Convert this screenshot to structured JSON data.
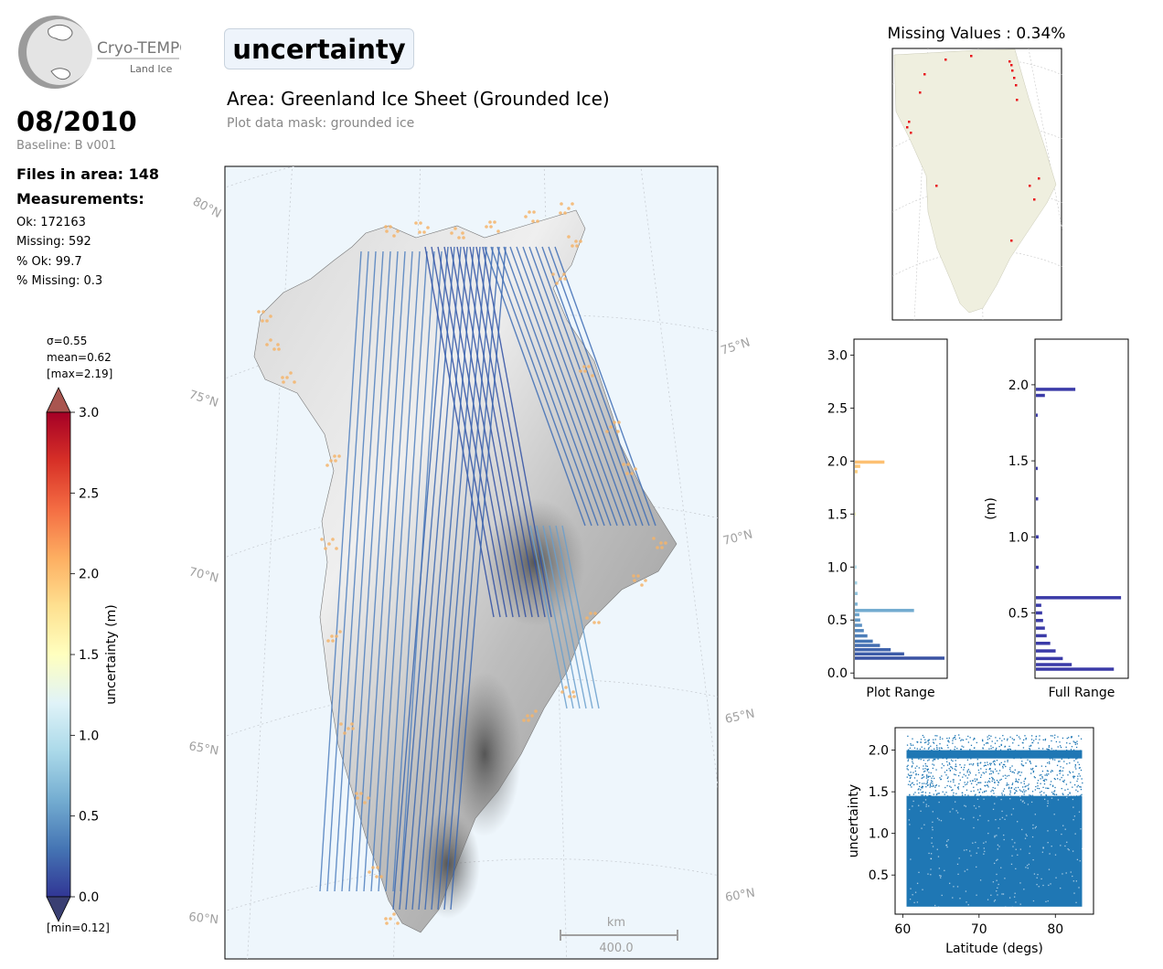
{
  "header": {
    "logo_name": "Cryo-TEMPO",
    "logo_sub": "Land Ice",
    "title": "uncertainty",
    "area": "Area: Greenland Ice Sheet (Grounded Ice)",
    "mask": "Plot data mask: grounded ice"
  },
  "summary": {
    "date": "08/2010",
    "baseline": "Baseline: B v001",
    "files": "Files in area: 148",
    "measurements_label": "Measurements:",
    "ok": "Ok: 172163",
    "missing": "Missing: 592",
    "pct_ok": "% Ok: 99.7",
    "pct_missing": "% Missing: 0.3"
  },
  "colorbar": {
    "sigma": "σ=0.55",
    "mean": "mean=0.62",
    "max": "[max=2.19]",
    "min": "[min=0.12]",
    "label": "uncertainty (m)",
    "ticks": [
      "0.0",
      "0.5",
      "1.0",
      "1.5",
      "2.0",
      "2.5",
      "3.0"
    ],
    "range": [
      0,
      3
    ],
    "colormap": "RdYlBu_r"
  },
  "map": {
    "lat_labels_left": [
      "80°N",
      "75°N",
      "70°N",
      "65°N",
      "60°N"
    ],
    "lat_labels_right": [
      "75°N",
      "70°N",
      "65°N",
      "60°N"
    ],
    "scale_unit": "km",
    "scale_value": "400.0",
    "background": "#eef6fc"
  },
  "missing_map": {
    "title": "Missing Values : 0.34%",
    "land_color": "#efefdf",
    "missing_color": "#e8141b"
  },
  "chart_data": [
    {
      "type": "bar",
      "orientation": "horizontal",
      "xlabel": "Plot Range",
      "ylim": [
        -0.05,
        3.15
      ],
      "yticks": [
        "0.0",
        "0.5",
        "1.0",
        "1.5",
        "2.0",
        "2.5",
        "3.0"
      ],
      "bins": [
        {
          "y": 0.14,
          "count": 1.0
        },
        {
          "y": 0.18,
          "count": 0.55
        },
        {
          "y": 0.22,
          "count": 0.4
        },
        {
          "y": 0.26,
          "count": 0.28
        },
        {
          "y": 0.3,
          "count": 0.2
        },
        {
          "y": 0.35,
          "count": 0.14
        },
        {
          "y": 0.4,
          "count": 0.1
        },
        {
          "y": 0.45,
          "count": 0.08
        },
        {
          "y": 0.5,
          "count": 0.06
        },
        {
          "y": 0.55,
          "count": 0.05
        },
        {
          "y": 0.59,
          "count": 0.66
        },
        {
          "y": 0.65,
          "count": 0.03
        },
        {
          "y": 0.75,
          "count": 0.03
        },
        {
          "y": 0.85,
          "count": 0.025
        },
        {
          "y": 1.0,
          "count": 0.02
        },
        {
          "y": 1.5,
          "count": 0.01
        },
        {
          "y": 1.9,
          "count": 0.03
        },
        {
          "y": 1.95,
          "count": 0.06
        },
        {
          "y": 1.99,
          "count": 0.33
        }
      ]
    },
    {
      "type": "bar",
      "orientation": "horizontal",
      "xlabel": "Full Range",
      "ylabel": "(m)",
      "ylim": [
        0.07,
        2.3
      ],
      "yticks": [
        "0.5",
        "1.0",
        "1.5",
        "2.0"
      ],
      "bins": [
        {
          "y": 0.13,
          "count": 0.87
        },
        {
          "y": 0.16,
          "count": 0.4
        },
        {
          "y": 0.2,
          "count": 0.3
        },
        {
          "y": 0.25,
          "count": 0.22
        },
        {
          "y": 0.3,
          "count": 0.16
        },
        {
          "y": 0.35,
          "count": 0.12
        },
        {
          "y": 0.4,
          "count": 0.1
        },
        {
          "y": 0.45,
          "count": 0.08
        },
        {
          "y": 0.5,
          "count": 0.07
        },
        {
          "y": 0.55,
          "count": 0.06
        },
        {
          "y": 0.6,
          "count": 0.95
        },
        {
          "y": 0.8,
          "count": 0.03
        },
        {
          "y": 1.0,
          "count": 0.03
        },
        {
          "y": 1.25,
          "count": 0.025
        },
        {
          "y": 1.45,
          "count": 0.02
        },
        {
          "y": 1.8,
          "count": 0.02
        },
        {
          "y": 1.93,
          "count": 0.1
        },
        {
          "y": 1.97,
          "count": 0.44
        }
      ]
    },
    {
      "type": "scatter",
      "xlabel": "Latitude (degs)",
      "ylabel": "uncertainty",
      "xlim": [
        59,
        85
      ],
      "ylim": [
        0.03,
        2.27
      ],
      "xticks": [
        "60",
        "70",
        "80"
      ],
      "yticks": [
        "0.5",
        "1.0",
        "1.5",
        "2.0"
      ],
      "color": "#1f77b4",
      "x_extent": [
        60.5,
        83.5
      ],
      "y_extent": [
        0.12,
        2.19
      ]
    }
  ]
}
